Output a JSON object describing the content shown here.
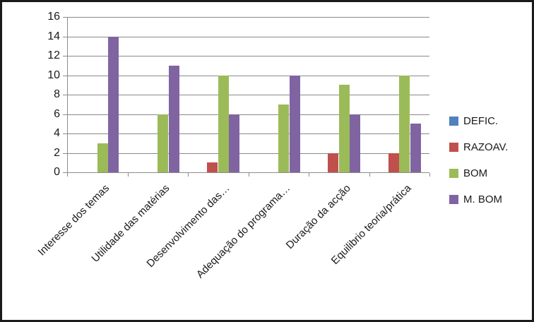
{
  "chart_data": {
    "type": "bar",
    "title": "",
    "categories": [
      "Interesse dos temas",
      "Utilidade das matérias",
      "Desenvolvimento das…",
      "Adequação do programa…",
      "Duração da acção",
      "Equilibrio teoria/prática"
    ],
    "series": [
      {
        "name": "DEFIC.",
        "color": "#4F81BD",
        "values": [
          0,
          0,
          0,
          0,
          0,
          0
        ]
      },
      {
        "name": "RAZOAV.",
        "color": "#C0504D",
        "values": [
          0,
          0,
          1,
          0,
          2,
          2
        ]
      },
      {
        "name": "BOM",
        "color": "#9BBB59",
        "values": [
          3,
          6,
          10,
          7,
          9,
          10
        ]
      },
      {
        "name": "M. BOM",
        "color": "#8064A2",
        "values": [
          14,
          11,
          6,
          10,
          6,
          5
        ]
      }
    ],
    "ylim": [
      0,
      16
    ],
    "ytick_step": 2,
    "yticks": [
      0,
      2,
      4,
      6,
      8,
      10,
      12,
      14,
      16
    ],
    "xlabel": "",
    "ylabel": "",
    "grid": true,
    "legend_position": "right",
    "colors": {
      "gridline": "#898989",
      "axis": "#8C8C8C",
      "text": "#1A1A1A",
      "frame_border": "#1A1A1A",
      "background": "#FFFFFF"
    }
  }
}
